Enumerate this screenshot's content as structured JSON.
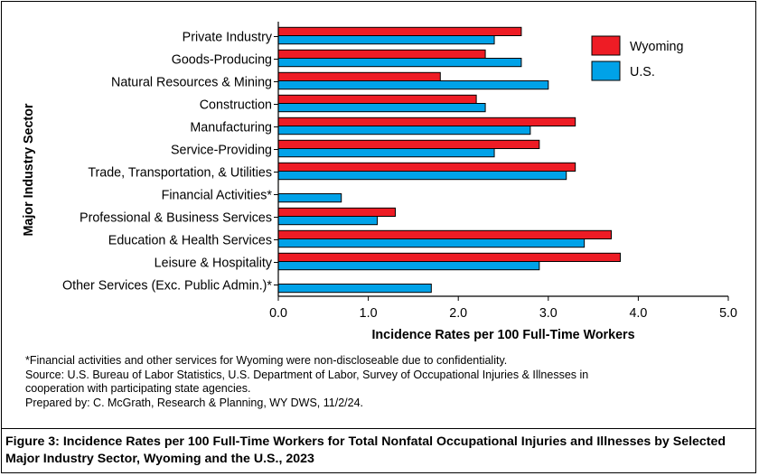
{
  "chart_data": {
    "type": "bar",
    "orientation": "horizontal",
    "categories": [
      "Private Industry",
      "Goods-Producing",
      "Natural Resources & Mining",
      "Construction",
      "Manufacturing",
      "Service-Providing",
      "Trade, Transportation, & Utilities",
      "Financial Activities*",
      "Professional & Business Services",
      "Education & Health Services",
      "Leisure & Hospitality",
      "Other Services (Exc. Public Admin.)*"
    ],
    "series": [
      {
        "name": "Wyoming",
        "color": "#ee1c25",
        "values": [
          2.7,
          2.3,
          1.8,
          2.2,
          3.3,
          2.9,
          3.3,
          null,
          1.3,
          3.7,
          3.8,
          null
        ]
      },
      {
        "name": "U.S.",
        "color": "#00a2e8",
        "values": [
          2.4,
          2.7,
          3.0,
          2.3,
          2.8,
          2.4,
          3.2,
          0.7,
          1.1,
          3.4,
          2.9,
          1.7
        ]
      }
    ],
    "xlabel": "Incidence Rates per 100 Full-Time Workers",
    "ylabel": "Major Industry Sector",
    "xlim": [
      0,
      5
    ],
    "xticks": [
      "0.0",
      "1.0",
      "2.0",
      "3.0",
      "4.0",
      "5.0"
    ],
    "grid": false,
    "legend_position": "top-right"
  },
  "notes": [
    "*Financial activities and other services for Wyoming were non-discloseable due to confidentiality.",
    "Source: U.S. Bureau of Labor Statistics, U.S. Department of Labor, Survey of Occupational Injuries & Illnesses in",
    "cooperation with participating state agencies.",
    "Prepared by: C. McGrath, Research & Planning, WY DWS, 11/2/24."
  ],
  "caption": "Figure 3: Incidence Rates per 100 Full-Time Workers for Total Nonfatal Occupational Injuries and Illnesses by Selected Major Industry Sector, Wyoming and the U.S., 2023"
}
